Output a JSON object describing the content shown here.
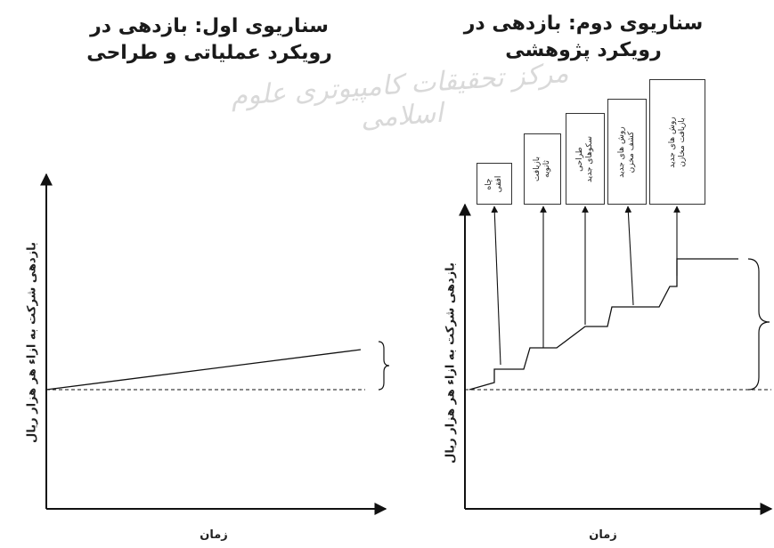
{
  "scenario_1": {
    "title_line1": "سناریوی اول: بازدهی در",
    "title_line2": "رویکرد عملیاتی و طراحی",
    "y_axis_label": "بازدهی شرکت به ازاء هر هزار ریال",
    "x_axis_label": "زمان"
  },
  "scenario_2": {
    "title_line1": "سناریوی دوم: بازدهی در",
    "title_line2": "رویکرد پژوهشی",
    "y_axis_label": "بازدهی شرکت به ازاء هر هزار ریال",
    "x_axis_label": "زمان",
    "boxes": [
      {
        "line1": "چاه",
        "line2": "افقی"
      },
      {
        "line1": "بازیافت",
        "line2": "ثانویه"
      },
      {
        "line1": "طراحی",
        "line2": "سکوهای جدید"
      },
      {
        "line1": "روش های جدید",
        "line2": "کشف مخزن"
      },
      {
        "line1": "روش های جدید",
        "line2": "بازیافت مخازن"
      }
    ]
  },
  "watermark": "مرکز تحقیقات کامپیوتری علوم اسلامی",
  "colors": {
    "line": "#111111",
    "box_border": "#333333",
    "watermark": "#d9d9d9"
  }
}
